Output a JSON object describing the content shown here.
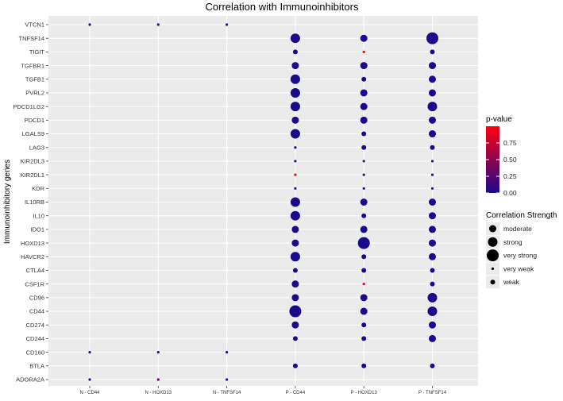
{
  "chart_data": {
    "type": "scatter",
    "title": "Correlation with Immunoinhibitors",
    "xlabel": "",
    "ylabel": "Immunoinhibitory genes",
    "categories": [
      "N - CD44",
      "N - HOXD13",
      "N - TNFSF14",
      "P - CD44",
      "P - HOXD13",
      "P - TNFSF14"
    ],
    "genes": [
      "VTCN1",
      "TNFSF14",
      "TIGIT",
      "TGFBR1",
      "TGFB1",
      "PVRL2",
      "PDCD1LG2",
      "PDCD1",
      "LGALS9",
      "LAG3",
      "KIR2DL3",
      "KIR2DL1",
      "KDR",
      "IL10RB",
      "IL10",
      "IDO1",
      "HOXD13",
      "HAVCR2",
      "CTLA4",
      "CSF1R",
      "CD96",
      "CD44",
      "CD274",
      "CD244",
      "CD160",
      "BTLA",
      "ADORA2A"
    ],
    "points": [
      {
        "gene": "VTCN1",
        "x": "N - CD44",
        "strength": "very weak",
        "p": 0.05
      },
      {
        "gene": "VTCN1",
        "x": "N - HOXD13",
        "strength": "very weak",
        "p": 0.1
      },
      {
        "gene": "VTCN1",
        "x": "N - TNFSF14",
        "strength": "very weak",
        "p": 0.05
      },
      {
        "gene": "TNFSF14",
        "x": "P - CD44",
        "strength": "strong",
        "p": 0.0
      },
      {
        "gene": "TNFSF14",
        "x": "P - HOXD13",
        "strength": "moderate",
        "p": 0.0
      },
      {
        "gene": "TNFSF14",
        "x": "P - TNFSF14",
        "strength": "very strong",
        "p": 0.0
      },
      {
        "gene": "TIGIT",
        "x": "P - CD44",
        "strength": "weak",
        "p": 0.0
      },
      {
        "gene": "TIGIT",
        "x": "P - HOXD13",
        "strength": "very weak",
        "p": 0.95
      },
      {
        "gene": "TIGIT",
        "x": "P - TNFSF14",
        "strength": "weak",
        "p": 0.0
      },
      {
        "gene": "TGFBR1",
        "x": "P - CD44",
        "strength": "moderate",
        "p": 0.0
      },
      {
        "gene": "TGFBR1",
        "x": "P - HOXD13",
        "strength": "moderate",
        "p": 0.0
      },
      {
        "gene": "TGFBR1",
        "x": "P - TNFSF14",
        "strength": "moderate",
        "p": 0.0
      },
      {
        "gene": "TGFB1",
        "x": "P - CD44",
        "strength": "strong",
        "p": 0.0
      },
      {
        "gene": "TGFB1",
        "x": "P - HOXD13",
        "strength": "weak",
        "p": 0.0
      },
      {
        "gene": "TGFB1",
        "x": "P - TNFSF14",
        "strength": "moderate",
        "p": 0.0
      },
      {
        "gene": "PVRL2",
        "x": "P - CD44",
        "strength": "strong",
        "p": 0.0
      },
      {
        "gene": "PVRL2",
        "x": "P - HOXD13",
        "strength": "moderate",
        "p": 0.0
      },
      {
        "gene": "PVRL2",
        "x": "P - TNFSF14",
        "strength": "moderate",
        "p": 0.0
      },
      {
        "gene": "PDCD1LG2",
        "x": "P - CD44",
        "strength": "strong",
        "p": 0.0
      },
      {
        "gene": "PDCD1LG2",
        "x": "P - HOXD13",
        "strength": "moderate",
        "p": 0.0
      },
      {
        "gene": "PDCD1LG2",
        "x": "P - TNFSF14",
        "strength": "strong",
        "p": 0.0
      },
      {
        "gene": "PDCD1",
        "x": "P - CD44",
        "strength": "moderate",
        "p": 0.0
      },
      {
        "gene": "PDCD1",
        "x": "P - HOXD13",
        "strength": "moderate",
        "p": 0.0
      },
      {
        "gene": "PDCD1",
        "x": "P - TNFSF14",
        "strength": "moderate",
        "p": 0.0
      },
      {
        "gene": "LGALS9",
        "x": "P - CD44",
        "strength": "strong",
        "p": 0.0
      },
      {
        "gene": "LGALS9",
        "x": "P - HOXD13",
        "strength": "weak",
        "p": 0.0
      },
      {
        "gene": "LGALS9",
        "x": "P - TNFSF14",
        "strength": "moderate",
        "p": 0.0
      },
      {
        "gene": "LAG3",
        "x": "P - CD44",
        "strength": "very weak",
        "p": 0.05
      },
      {
        "gene": "LAG3",
        "x": "P - HOXD13",
        "strength": "weak",
        "p": 0.0
      },
      {
        "gene": "LAG3",
        "x": "P - TNFSF14",
        "strength": "weak",
        "p": 0.0
      },
      {
        "gene": "KIR2DL3",
        "x": "P - CD44",
        "strength": "very weak",
        "p": 0.1
      },
      {
        "gene": "KIR2DL3",
        "x": "P - HOXD13",
        "strength": "very weak",
        "p": 0.1
      },
      {
        "gene": "KIR2DL3",
        "x": "P - TNFSF14",
        "strength": "very weak",
        "p": 0.05
      },
      {
        "gene": "KIR2DL1",
        "x": "P - CD44",
        "strength": "very weak",
        "p": 0.95
      },
      {
        "gene": "KIR2DL1",
        "x": "P - HOXD13",
        "strength": "very weak",
        "p": 0.2
      },
      {
        "gene": "KIR2DL1",
        "x": "P - TNFSF14",
        "strength": "very weak",
        "p": 0.1
      },
      {
        "gene": "KDR",
        "x": "P - CD44",
        "strength": "very weak",
        "p": 0.05
      },
      {
        "gene": "KDR",
        "x": "P - HOXD13",
        "strength": "very weak",
        "p": 0.05
      },
      {
        "gene": "KDR",
        "x": "P - TNFSF14",
        "strength": "very weak",
        "p": 0.1
      },
      {
        "gene": "IL10RB",
        "x": "P - CD44",
        "strength": "strong",
        "p": 0.0
      },
      {
        "gene": "IL10RB",
        "x": "P - HOXD13",
        "strength": "moderate",
        "p": 0.0
      },
      {
        "gene": "IL10RB",
        "x": "P - TNFSF14",
        "strength": "moderate",
        "p": 0.0
      },
      {
        "gene": "IL10",
        "x": "P - CD44",
        "strength": "strong",
        "p": 0.0
      },
      {
        "gene": "IL10",
        "x": "P - HOXD13",
        "strength": "weak",
        "p": 0.0
      },
      {
        "gene": "IL10",
        "x": "P - TNFSF14",
        "strength": "moderate",
        "p": 0.0
      },
      {
        "gene": "IDO1",
        "x": "P - CD44",
        "strength": "moderate",
        "p": 0.0
      },
      {
        "gene": "IDO1",
        "x": "P - HOXD13",
        "strength": "moderate",
        "p": 0.0
      },
      {
        "gene": "IDO1",
        "x": "P - TNFSF14",
        "strength": "moderate",
        "p": 0.0
      },
      {
        "gene": "HOXD13",
        "x": "P - CD44",
        "strength": "moderate",
        "p": 0.0
      },
      {
        "gene": "HOXD13",
        "x": "P - HOXD13",
        "strength": "very strong",
        "p": 0.0
      },
      {
        "gene": "HOXD13",
        "x": "P - TNFSF14",
        "strength": "moderate",
        "p": 0.0
      },
      {
        "gene": "HAVCR2",
        "x": "P - CD44",
        "strength": "strong",
        "p": 0.0
      },
      {
        "gene": "HAVCR2",
        "x": "P - HOXD13",
        "strength": "weak",
        "p": 0.0
      },
      {
        "gene": "HAVCR2",
        "x": "P - TNFSF14",
        "strength": "moderate",
        "p": 0.0
      },
      {
        "gene": "CTLA4",
        "x": "P - CD44",
        "strength": "weak",
        "p": 0.0
      },
      {
        "gene": "CTLA4",
        "x": "P - HOXD13",
        "strength": "weak",
        "p": 0.0
      },
      {
        "gene": "CTLA4",
        "x": "P - TNFSF14",
        "strength": "weak",
        "p": 0.0
      },
      {
        "gene": "CSF1R",
        "x": "P - CD44",
        "strength": "moderate",
        "p": 0.0
      },
      {
        "gene": "CSF1R",
        "x": "P - HOXD13",
        "strength": "very weak",
        "p": 0.85
      },
      {
        "gene": "CSF1R",
        "x": "P - TNFSF14",
        "strength": "weak",
        "p": 0.0
      },
      {
        "gene": "CD96",
        "x": "P - CD44",
        "strength": "moderate",
        "p": 0.0
      },
      {
        "gene": "CD96",
        "x": "P - HOXD13",
        "strength": "moderate",
        "p": 0.0
      },
      {
        "gene": "CD96",
        "x": "P - TNFSF14",
        "strength": "strong",
        "p": 0.0
      },
      {
        "gene": "CD44",
        "x": "P - CD44",
        "strength": "very strong",
        "p": 0.0
      },
      {
        "gene": "CD44",
        "x": "P - HOXD13",
        "strength": "moderate",
        "p": 0.0
      },
      {
        "gene": "CD44",
        "x": "P - TNFSF14",
        "strength": "strong",
        "p": 0.0
      },
      {
        "gene": "CD274",
        "x": "P - CD44",
        "strength": "moderate",
        "p": 0.0
      },
      {
        "gene": "CD274",
        "x": "P - HOXD13",
        "strength": "weak",
        "p": 0.0
      },
      {
        "gene": "CD274",
        "x": "P - TNFSF14",
        "strength": "moderate",
        "p": 0.0
      },
      {
        "gene": "CD244",
        "x": "P - CD44",
        "strength": "weak",
        "p": 0.0
      },
      {
        "gene": "CD244",
        "x": "P - HOXD13",
        "strength": "weak",
        "p": 0.0
      },
      {
        "gene": "CD244",
        "x": "P - TNFSF14",
        "strength": "moderate",
        "p": 0.0
      },
      {
        "gene": "CD160",
        "x": "N - CD44",
        "strength": "very weak",
        "p": 0.05
      },
      {
        "gene": "CD160",
        "x": "N - HOXD13",
        "strength": "very weak",
        "p": 0.1
      },
      {
        "gene": "CD160",
        "x": "N - TNFSF14",
        "strength": "very weak",
        "p": 0.05
      },
      {
        "gene": "BTLA",
        "x": "P - CD44",
        "strength": "weak",
        "p": 0.0
      },
      {
        "gene": "BTLA",
        "x": "P - HOXD13",
        "strength": "weak",
        "p": 0.0
      },
      {
        "gene": "BTLA",
        "x": "P - TNFSF14",
        "strength": "weak",
        "p": 0.0
      },
      {
        "gene": "ADORA2A",
        "x": "N - CD44",
        "strength": "very weak",
        "p": 0.05
      },
      {
        "gene": "ADORA2A",
        "x": "N - HOXD13",
        "strength": "very weak",
        "p": 0.3
      },
      {
        "gene": "ADORA2A",
        "x": "N - TNFSF14",
        "strength": "very weak",
        "p": 0.1
      }
    ],
    "color_legend": {
      "title": "p-value",
      "ticks": [
        "0.75",
        "0.50",
        "0.25",
        "0.00"
      ],
      "tick_values": [
        0.75,
        0.5,
        0.25,
        0.0
      ],
      "range": [
        0,
        1
      ],
      "low_color": "#1a0a8c",
      "high_color": "#ff0010"
    },
    "size_legend": {
      "title": "Correlation Strength",
      "levels": [
        "moderate",
        "strong",
        "very strong",
        "very weak",
        "weak"
      ]
    },
    "grid": true,
    "legend_position": "right",
    "panel_background": "#ebebeb",
    "grid_color": "#ffffff"
  }
}
